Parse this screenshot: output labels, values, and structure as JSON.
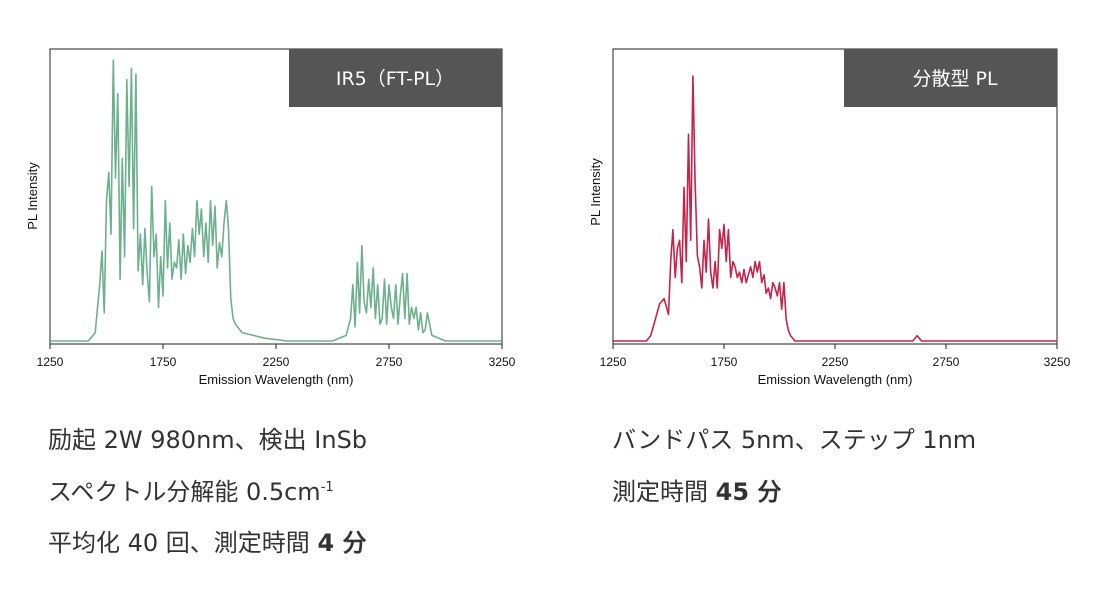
{
  "chart_data": [
    {
      "type": "line",
      "badge": "IR5（FT-PL）",
      "xlabel": "Emission Wavelength (nm)",
      "ylabel": "PL Intensity",
      "xlim": [
        1250,
        3250
      ],
      "ylim": [
        0,
        1
      ],
      "x_ticks": [
        "1250",
        "1750",
        "2250",
        "2750",
        "3250"
      ],
      "line_color": "#6db08e",
      "series": [
        {
          "x": [
            1250,
            1420,
            1450,
            1470,
            1480,
            1490,
            1500,
            1510,
            1520,
            1530,
            1540,
            1550,
            1560,
            1570,
            1580,
            1590,
            1600,
            1610,
            1620,
            1630,
            1640,
            1650,
            1660,
            1670,
            1680,
            1690,
            1700,
            1710,
            1720,
            1730,
            1740,
            1750,
            1760,
            1770,
            1780,
            1790,
            1800,
            1810,
            1820,
            1830,
            1840,
            1850,
            1860,
            1870,
            1880,
            1890,
            1900,
            1910,
            1920,
            1930,
            1940,
            1950,
            1960,
            1970,
            1980,
            1990,
            2000,
            2010,
            2020,
            2030,
            2040,
            2050,
            2060,
            2070,
            2080,
            2100,
            2150,
            2200,
            2300,
            2400,
            2500,
            2560,
            2580,
            2590,
            2600,
            2610,
            2620,
            2630,
            2640,
            2650,
            2660,
            2670,
            2680,
            2690,
            2700,
            2710,
            2720,
            2730,
            2740,
            2750,
            2760,
            2770,
            2780,
            2790,
            2800,
            2810,
            2820,
            2830,
            2840,
            2850,
            2860,
            2870,
            2880,
            2890,
            2900,
            2910,
            2920,
            2940,
            3000,
            3250
          ],
          "values": [
            0.0,
            0.0,
            0.03,
            0.2,
            0.32,
            0.1,
            0.5,
            0.6,
            0.38,
            1.0,
            0.58,
            0.88,
            0.22,
            0.65,
            0.3,
            0.93,
            0.55,
            0.97,
            0.4,
            0.95,
            0.25,
            0.38,
            0.2,
            0.4,
            0.24,
            0.14,
            0.55,
            0.3,
            0.38,
            0.12,
            0.3,
            0.16,
            0.5,
            0.26,
            0.42,
            0.22,
            0.28,
            0.26,
            0.36,
            0.22,
            0.38,
            0.24,
            0.34,
            0.28,
            0.4,
            0.3,
            0.5,
            0.38,
            0.47,
            0.3,
            0.42,
            0.28,
            0.5,
            0.34,
            0.48,
            0.26,
            0.35,
            0.3,
            0.42,
            0.5,
            0.4,
            0.15,
            0.08,
            0.06,
            0.05,
            0.03,
            0.02,
            0.01,
            0.0,
            0.0,
            0.0,
            0.02,
            0.08,
            0.2,
            0.05,
            0.28,
            0.1,
            0.34,
            0.14,
            0.1,
            0.22,
            0.12,
            0.26,
            0.08,
            0.2,
            0.06,
            0.08,
            0.22,
            0.06,
            0.2,
            0.12,
            0.08,
            0.2,
            0.06,
            0.16,
            0.24,
            0.08,
            0.24,
            0.06,
            0.12,
            0.08,
            0.12,
            0.04,
            0.1,
            0.03,
            0.04,
            0.1,
            0.02,
            0.0,
            0.0
          ]
        }
      ]
    },
    {
      "type": "line",
      "badge": "分散型 PL",
      "xlabel": "Emission Wavelength (nm)",
      "ylabel": "PL Intensity",
      "xlim": [
        1250,
        3250
      ],
      "ylim": [
        0,
        1
      ],
      "x_ticks": [
        "1250",
        "1750",
        "2250",
        "2750",
        "3250"
      ],
      "line_color": "#c4244c",
      "series": [
        {
          "x": [
            1250,
            1400,
            1420,
            1440,
            1460,
            1480,
            1500,
            1510,
            1520,
            1530,
            1540,
            1550,
            1560,
            1570,
            1580,
            1590,
            1600,
            1610,
            1620,
            1630,
            1640,
            1650,
            1660,
            1670,
            1680,
            1690,
            1700,
            1710,
            1720,
            1730,
            1740,
            1750,
            1760,
            1770,
            1780,
            1790,
            1800,
            1810,
            1820,
            1830,
            1840,
            1850,
            1860,
            1870,
            1880,
            1890,
            1900,
            1910,
            1920,
            1930,
            1940,
            1950,
            1960,
            1970,
            1980,
            1990,
            2000,
            2010,
            2020,
            2030,
            2040,
            2050,
            2060,
            2070,
            2080,
            2100,
            2150,
            2200,
            2400,
            2600,
            2620,
            2640,
            2660,
            2800,
            3250
          ],
          "values": [
            0.0,
            0.0,
            0.02,
            0.08,
            0.14,
            0.16,
            0.1,
            0.3,
            0.42,
            0.24,
            0.35,
            0.38,
            0.22,
            0.58,
            0.3,
            0.78,
            0.38,
            1.0,
            0.6,
            0.32,
            0.28,
            0.2,
            0.38,
            0.26,
            0.46,
            0.26,
            0.2,
            0.3,
            0.2,
            0.42,
            0.35,
            0.44,
            0.3,
            0.42,
            0.24,
            0.3,
            0.28,
            0.24,
            0.26,
            0.22,
            0.27,
            0.22,
            0.25,
            0.28,
            0.24,
            0.3,
            0.26,
            0.3,
            0.22,
            0.25,
            0.18,
            0.2,
            0.16,
            0.22,
            0.2,
            0.17,
            0.22,
            0.12,
            0.22,
            0.08,
            0.04,
            0.02,
            0.01,
            0.0,
            0.0,
            0.0,
            0.0,
            0.0,
            0.0,
            0.0,
            0.02,
            0.0,
            0.0,
            0.0,
            0.0
          ]
        }
      ]
    }
  ],
  "captions": {
    "left": {
      "line1": "励起 2W 980nm、検出 InSb",
      "line2": "スペクトル分解能 0.5cm",
      "line2_sup": "-1",
      "line3_text": "平均化 40 回、測定時間 ",
      "line3_bold": "4 分"
    },
    "right": {
      "line1": "バンドパス 5nm、ステップ 1nm",
      "line2_text": "測定時間 ",
      "line2_bold": "45 分"
    }
  }
}
